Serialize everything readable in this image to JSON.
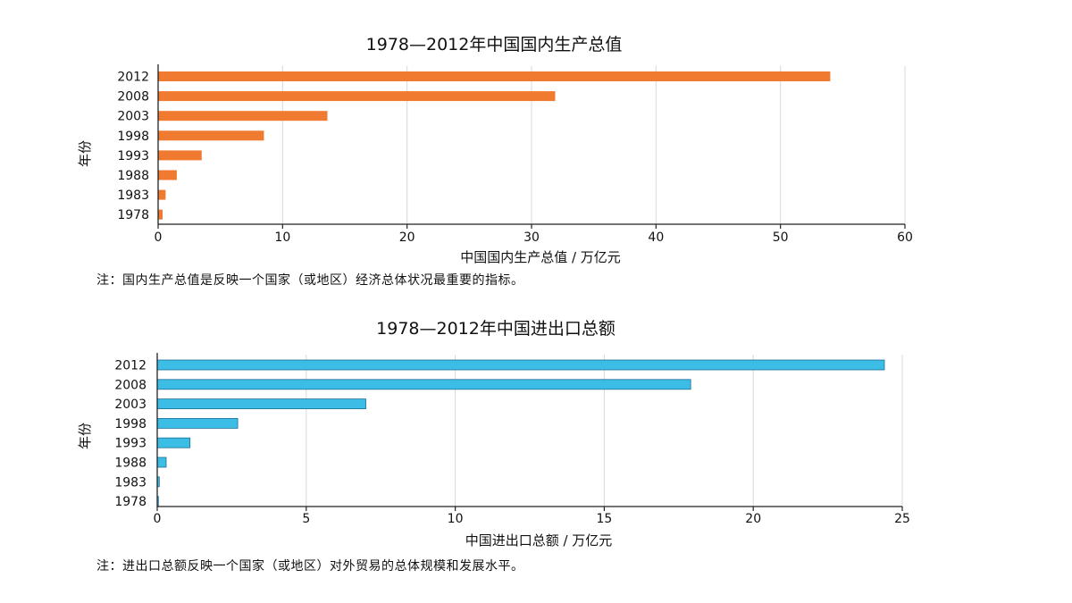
{
  "chart_data": [
    {
      "type": "bar",
      "orientation": "horizontal",
      "title": "1978—2012年中国国内生产总值",
      "ylabel": "年份",
      "xlabel": "中国国内生产总值 / 万亿元",
      "categories": [
        "2012",
        "2008",
        "2003",
        "1998",
        "1993",
        "1988",
        "1983",
        "1978"
      ],
      "values": [
        54.0,
        31.9,
        13.6,
        8.5,
        3.5,
        1.5,
        0.6,
        0.36
      ],
      "xlim": [
        0,
        60
      ],
      "xticks": [
        "0",
        "10",
        "20",
        "30",
        "40",
        "50",
        "60"
      ],
      "grid": true,
      "color": "#f07a30",
      "note": "注：国内生产总值是反映一个国家（或地区）经济总体状况最重要的指标。"
    },
    {
      "type": "bar",
      "orientation": "horizontal",
      "title": "1978—2012年中国进出口总额",
      "ylabel": "年份",
      "xlabel": "中国进出口总额 / 万亿元",
      "categories": [
        "2012",
        "2008",
        "2003",
        "1998",
        "1993",
        "1988",
        "1983",
        "1978"
      ],
      "values": [
        24.4,
        17.9,
        7.0,
        2.7,
        1.1,
        0.3,
        0.07,
        0.04
      ],
      "xlim": [
        0,
        25
      ],
      "xticks": [
        "0",
        "5",
        "10",
        "15",
        "20",
        "25"
      ],
      "grid": true,
      "color": "#3cbde6",
      "note": "注：进出口总额反映一个国家（或地区）对外贸易的总体规模和发展水平。"
    }
  ]
}
